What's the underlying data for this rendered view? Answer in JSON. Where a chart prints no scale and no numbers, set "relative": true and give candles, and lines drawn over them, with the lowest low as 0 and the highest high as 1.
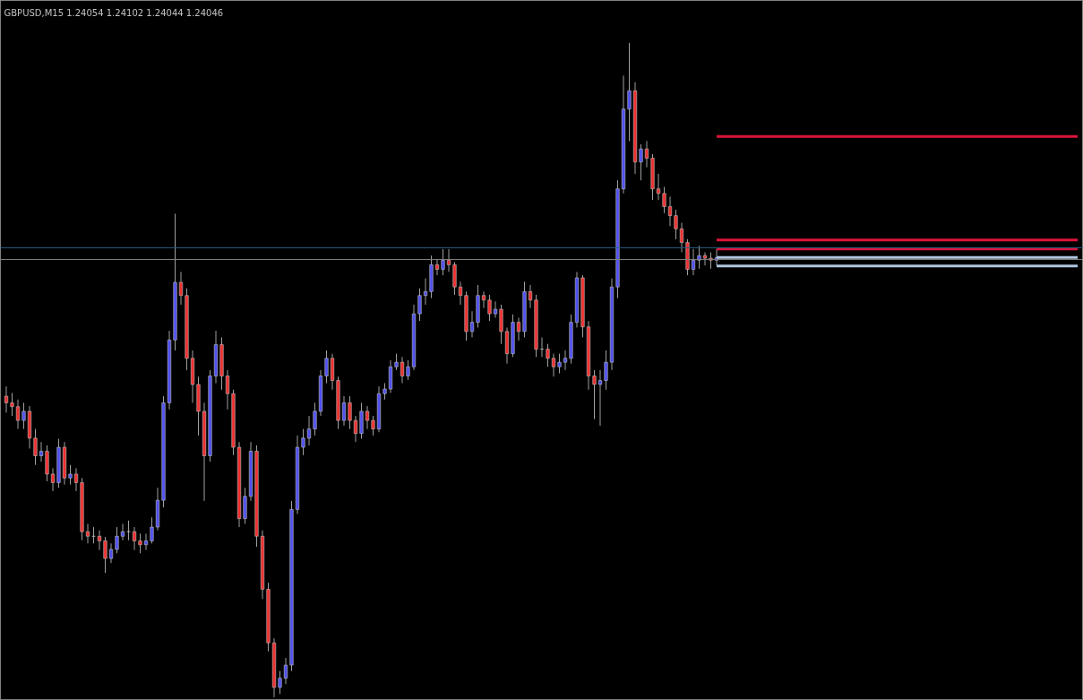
{
  "chart_data": {
    "type": "candlestick",
    "title": "GBPUSD,M15  1.24054 1.24102 1.24044 1.24046",
    "relative": true,
    "categories": [
      null,
      null,
      null,
      null,
      null,
      null,
      null,
      null,
      null,
      null,
      null,
      null,
      null,
      null,
      null,
      null,
      null,
      null,
      null,
      null,
      null,
      null,
      null,
      null,
      null,
      null,
      null,
      null,
      null,
      null,
      null,
      null,
      null,
      null,
      null,
      null,
      null,
      null,
      null,
      null,
      null,
      null,
      null,
      null,
      null,
      null,
      null,
      null,
      null,
      null,
      null,
      null,
      null,
      null,
      null,
      null,
      null,
      null,
      null,
      null,
      null,
      null,
      null,
      null,
      null,
      null,
      null,
      null,
      null,
      null,
      null,
      null,
      null,
      null,
      null,
      null,
      null,
      null,
      null,
      null,
      null,
      null,
      null,
      null,
      null,
      null,
      null,
      null,
      null,
      null,
      null,
      null,
      null,
      null,
      null,
      null,
      null,
      null,
      null,
      null,
      null,
      null,
      null,
      null,
      null,
      null,
      null,
      null,
      null,
      null,
      null,
      null,
      null,
      null,
      null,
      null,
      null,
      null,
      null,
      null,
      null,
      null,
      null,
      null,
      null,
      null,
      null,
      null,
      null,
      null,
      null,
      null,
      null,
      null,
      null,
      null,
      null,
      null,
      null,
      null,
      null,
      null,
      null,
      null,
      null,
      null,
      null,
      null,
      null,
      null,
      null,
      null,
      null,
      null,
      null,
      null,
      null,
      null,
      null,
      null,
      null,
      null,
      null,
      null,
      null,
      null,
      null,
      null,
      null,
      null,
      null,
      null,
      null,
      null,
      null,
      null,
      null,
      null,
      null,
      null,
      null,
      null,
      null,
      null,
      null
    ],
    "ohlc": [
      [
        0.46,
        0.475,
        0.435,
        0.45
      ],
      [
        0.45,
        0.465,
        0.43,
        0.444
      ],
      [
        0.444,
        0.455,
        0.41,
        0.423
      ],
      [
        0.423,
        0.45,
        0.41,
        0.437
      ],
      [
        0.437,
        0.445,
        0.38,
        0.396
      ],
      [
        0.396,
        0.41,
        0.355,
        0.369
      ],
      [
        0.369,
        0.39,
        0.36,
        0.376
      ],
      [
        0.376,
        0.385,
        0.33,
        0.341
      ],
      [
        0.341,
        0.35,
        0.315,
        0.328
      ],
      [
        0.328,
        0.395,
        0.32,
        0.382
      ],
      [
        0.382,
        0.39,
        0.325,
        0.335
      ],
      [
        0.335,
        0.355,
        0.325,
        0.341
      ],
      [
        0.341,
        0.35,
        0.315,
        0.328
      ],
      [
        0.328,
        0.335,
        0.24,
        0.253
      ],
      [
        0.253,
        0.265,
        0.235,
        0.246
      ],
      [
        0.246,
        0.26,
        0.235,
        0.246
      ],
      [
        0.246,
        0.255,
        0.225,
        0.239
      ],
      [
        0.239,
        0.245,
        0.19,
        0.212
      ],
      [
        0.212,
        0.235,
        0.205,
        0.226
      ],
      [
        0.226,
        0.26,
        0.22,
        0.246
      ],
      [
        0.246,
        0.265,
        0.24,
        0.253
      ],
      [
        0.253,
        0.27,
        0.24,
        0.253
      ],
      [
        0.253,
        0.26,
        0.225,
        0.239
      ],
      [
        0.239,
        0.25,
        0.22,
        0.233
      ],
      [
        0.233,
        0.25,
        0.225,
        0.239
      ],
      [
        0.239,
        0.275,
        0.235,
        0.26
      ],
      [
        0.26,
        0.32,
        0.255,
        0.301
      ],
      [
        0.301,
        0.46,
        0.29,
        0.45
      ],
      [
        0.45,
        0.56,
        0.44,
        0.546
      ],
      [
        0.546,
        0.739,
        0.53,
        0.634
      ],
      [
        0.634,
        0.65,
        0.6,
        0.614
      ],
      [
        0.614,
        0.625,
        0.5,
        0.518
      ],
      [
        0.518,
        0.53,
        0.45,
        0.478
      ],
      [
        0.478,
        0.49,
        0.4,
        0.437
      ],
      [
        0.437,
        0.45,
        0.3,
        0.369
      ],
      [
        0.369,
        0.5,
        0.36,
        0.491
      ],
      [
        0.491,
        0.56,
        0.48,
        0.539
      ],
      [
        0.539,
        0.55,
        0.47,
        0.491
      ],
      [
        0.491,
        0.5,
        0.44,
        0.464
      ],
      [
        0.464,
        0.47,
        0.37,
        0.382
      ],
      [
        0.382,
        0.39,
        0.26,
        0.273
      ],
      [
        0.273,
        0.32,
        0.265,
        0.307
      ],
      [
        0.307,
        0.39,
        0.3,
        0.376
      ],
      [
        0.376,
        0.385,
        0.23,
        0.246
      ],
      [
        0.246,
        0.255,
        0.15,
        0.165
      ],
      [
        0.165,
        0.175,
        0.07,
        0.083
      ],
      [
        0.083,
        0.09,
        0.0,
        0.015
      ],
      [
        0.015,
        0.04,
        0.005,
        0.029
      ],
      [
        0.029,
        0.06,
        0.02,
        0.049
      ],
      [
        0.049,
        0.3,
        0.04,
        0.287
      ],
      [
        0.287,
        0.4,
        0.28,
        0.382
      ],
      [
        0.382,
        0.41,
        0.37,
        0.396
      ],
      [
        0.396,
        0.43,
        0.385,
        0.41
      ],
      [
        0.41,
        0.45,
        0.4,
        0.437
      ],
      [
        0.437,
        0.5,
        0.43,
        0.491
      ],
      [
        0.491,
        0.53,
        0.48,
        0.518
      ],
      [
        0.518,
        0.525,
        0.47,
        0.484
      ],
      [
        0.484,
        0.49,
        0.41,
        0.423
      ],
      [
        0.423,
        0.46,
        0.415,
        0.45
      ],
      [
        0.45,
        0.46,
        0.41,
        0.423
      ],
      [
        0.423,
        0.43,
        0.39,
        0.403
      ],
      [
        0.403,
        0.45,
        0.395,
        0.437
      ],
      [
        0.437,
        0.445,
        0.41,
        0.423
      ],
      [
        0.423,
        0.43,
        0.4,
        0.41
      ],
      [
        0.41,
        0.475,
        0.405,
        0.464
      ],
      [
        0.464,
        0.48,
        0.455,
        0.471
      ],
      [
        0.471,
        0.515,
        0.465,
        0.505
      ],
      [
        0.505,
        0.525,
        0.5,
        0.512
      ],
      [
        0.512,
        0.52,
        0.48,
        0.491
      ],
      [
        0.491,
        0.515,
        0.485,
        0.505
      ],
      [
        0.505,
        0.6,
        0.5,
        0.586
      ],
      [
        0.586,
        0.625,
        0.575,
        0.614
      ],
      [
        0.614,
        0.64,
        0.6,
        0.62
      ],
      [
        0.62,
        0.675,
        0.61,
        0.661
      ],
      [
        0.661,
        0.67,
        0.645,
        0.654
      ],
      [
        0.654,
        0.685,
        0.645,
        0.668
      ],
      [
        0.668,
        0.685,
        0.65,
        0.661
      ],
      [
        0.661,
        0.665,
        0.615,
        0.627
      ],
      [
        0.627,
        0.635,
        0.6,
        0.614
      ],
      [
        0.614,
        0.62,
        0.545,
        0.559
      ],
      [
        0.559,
        0.59,
        0.55,
        0.573
      ],
      [
        0.573,
        0.63,
        0.565,
        0.614
      ],
      [
        0.614,
        0.62,
        0.595,
        0.607
      ],
      [
        0.607,
        0.615,
        0.575,
        0.586
      ],
      [
        0.586,
        0.605,
        0.58,
        0.593
      ],
      [
        0.593,
        0.6,
        0.54,
        0.559
      ],
      [
        0.559,
        0.565,
        0.51,
        0.525
      ],
      [
        0.525,
        0.585,
        0.52,
        0.573
      ],
      [
        0.573,
        0.58,
        0.545,
        0.559
      ],
      [
        0.559,
        0.635,
        0.55,
        0.62
      ],
      [
        0.62,
        0.63,
        0.595,
        0.607
      ],
      [
        0.607,
        0.615,
        0.52,
        0.532
      ],
      [
        0.532,
        0.55,
        0.52,
        0.532
      ],
      [
        0.532,
        0.54,
        0.505,
        0.518
      ],
      [
        0.518,
        0.525,
        0.49,
        0.505
      ],
      [
        0.505,
        0.525,
        0.495,
        0.512
      ],
      [
        0.512,
        0.53,
        0.5,
        0.518
      ],
      [
        0.518,
        0.585,
        0.51,
        0.573
      ],
      [
        0.573,
        0.65,
        0.565,
        0.641
      ],
      [
        0.641,
        0.645,
        0.55,
        0.566
      ],
      [
        0.566,
        0.575,
        0.47,
        0.491
      ],
      [
        0.491,
        0.5,
        0.425,
        0.478
      ],
      [
        0.478,
        0.5,
        0.415,
        0.484
      ],
      [
        0.484,
        0.53,
        0.47,
        0.512
      ],
      [
        0.512,
        0.64,
        0.5,
        0.627
      ],
      [
        0.627,
        0.79,
        0.61,
        0.777
      ],
      [
        0.777,
        0.95,
        0.77,
        0.899
      ],
      [
        0.899,
        1.0,
        0.85,
        0.927
      ],
      [
        0.927,
        0.94,
        0.8,
        0.818
      ],
      [
        0.818,
        0.845,
        0.79,
        0.838
      ],
      [
        0.838,
        0.85,
        0.81,
        0.824
      ],
      [
        0.824,
        0.83,
        0.76,
        0.777
      ],
      [
        0.777,
        0.8,
        0.76,
        0.77
      ],
      [
        0.77,
        0.78,
        0.74,
        0.75
      ],
      [
        0.75,
        0.765,
        0.72,
        0.736
      ],
      [
        0.736,
        0.745,
        0.7,
        0.716
      ],
      [
        0.716,
        0.725,
        0.68,
        0.695
      ],
      [
        0.695,
        0.7,
        0.645,
        0.654
      ],
      [
        0.654,
        0.685,
        0.645,
        0.668
      ],
      [
        0.668,
        0.69,
        0.655,
        0.675
      ],
      [
        0.675,
        0.68,
        0.66,
        0.671
      ],
      [
        0.671,
        0.68,
        0.655,
        0.668
      ],
      [
        0.668,
        0.685,
        0.66,
        0.672
      ],
      null,
      null,
      null,
      null,
      null,
      null,
      null,
      null,
      null,
      null,
      null,
      null,
      null,
      null,
      null,
      null,
      null,
      null,
      null,
      null,
      null,
      null,
      null,
      null,
      null,
      null,
      null,
      null,
      null,
      null,
      null,
      null,
      null,
      null,
      null,
      null,
      null,
      null,
      null,
      null,
      null,
      null,
      null,
      null,
      null,
      null,
      null,
      null,
      null,
      null,
      null,
      null,
      null,
      null,
      null,
      null,
      null,
      null,
      null,
      null,
      null,
      null
    ],
    "series": [
      {
        "type": "line",
        "color": "#dc143c",
        "values": [
          null,
          null,
          null,
          null,
          null,
          null,
          null,
          null,
          null,
          null,
          null,
          null,
          null,
          null,
          null,
          null,
          null,
          null,
          null,
          null,
          null,
          null,
          null,
          null,
          null,
          null,
          null,
          null,
          null,
          null,
          null,
          null,
          null,
          null,
          null,
          null,
          null,
          null,
          null,
          null,
          null,
          null,
          null,
          null,
          null,
          null,
          null,
          null,
          null,
          null,
          null,
          null,
          null,
          null,
          null,
          null,
          null,
          null,
          null,
          null,
          null,
          null,
          null,
          null,
          null,
          null,
          null,
          null,
          null,
          null,
          null,
          null,
          null,
          null,
          null,
          null,
          null,
          null,
          null,
          null,
          null,
          null,
          null,
          null,
          null,
          null,
          null,
          null,
          null,
          null,
          null,
          null,
          null,
          null,
          null,
          null,
          null,
          null,
          null,
          null,
          null,
          null,
          null,
          null,
          null,
          null,
          null,
          null,
          null,
          null,
          null,
          null,
          null,
          null,
          null,
          null,
          null,
          null,
          null,
          null,
          null,
          null,
          0.857,
          0.857,
          0.857,
          0.857,
          0.857,
          0.857,
          0.857,
          0.857,
          0.857,
          0.857,
          0.857,
          0.857,
          0.857,
          0.857,
          0.857,
          0.857,
          0.857,
          0.857,
          0.857,
          0.857,
          0.857,
          0.857,
          0.857,
          0.857,
          0.857,
          0.857,
          0.857,
          0.857,
          0.857,
          0.857,
          0.857,
          0.857,
          0.857,
          0.857,
          0.857,
          0.857,
          0.857,
          0.857,
          0.857,
          0.857,
          0.857,
          0.857,
          0.857,
          0.857,
          0.857,
          0.857,
          0.857,
          0.857,
          0.857,
          0.857,
          0.857,
          0.857,
          0.857,
          0.857,
          0.857,
          0.857,
          0.857,
          0.857,
          0.857,
          0.857,
          0.857,
          0.857,
          0.857
        ]
      },
      {
        "type": "line",
        "color": "#dc143c",
        "values": [
          null,
          null,
          null,
          null,
          null,
          null,
          null,
          null,
          null,
          null,
          null,
          null,
          null,
          null,
          null,
          null,
          null,
          null,
          null,
          null,
          null,
          null,
          null,
          null,
          null,
          null,
          null,
          null,
          null,
          null,
          null,
          null,
          null,
          null,
          null,
          null,
          null,
          null,
          null,
          null,
          null,
          null,
          null,
          null,
          null,
          null,
          null,
          null,
          null,
          null,
          null,
          null,
          null,
          null,
          null,
          null,
          null,
          null,
          null,
          null,
          null,
          null,
          null,
          null,
          null,
          null,
          null,
          null,
          null,
          null,
          null,
          null,
          null,
          null,
          null,
          null,
          null,
          null,
          null,
          null,
          null,
          null,
          null,
          null,
          null,
          null,
          null,
          null,
          null,
          null,
          null,
          null,
          null,
          null,
          null,
          null,
          null,
          null,
          null,
          null,
          null,
          null,
          null,
          null,
          null,
          null,
          null,
          null,
          null,
          null,
          null,
          null,
          null,
          null,
          null,
          null,
          null,
          null,
          null,
          null,
          null,
          null,
          0.699,
          0.699,
          0.699,
          0.699,
          0.699,
          0.699,
          0.699,
          0.699,
          0.699,
          0.699,
          0.699,
          0.699,
          0.699,
          0.699,
          0.699,
          0.699,
          0.699,
          0.699,
          0.699,
          0.699,
          0.699,
          0.699,
          0.699,
          0.699,
          0.699,
          0.699,
          0.699,
          0.699,
          0.699,
          0.699,
          0.699,
          0.699,
          0.699,
          0.699,
          0.699,
          0.699,
          0.699,
          0.699,
          0.699,
          0.699,
          0.699,
          0.699,
          0.699,
          0.699,
          0.699,
          0.699,
          0.699,
          0.699,
          0.699,
          0.699,
          0.699,
          0.699,
          0.699,
          0.699,
          0.699,
          0.699,
          0.699,
          0.699,
          0.699,
          0.699,
          0.699,
          0.699,
          0.699
        ]
      },
      {
        "type": "line",
        "color": "#dc143c",
        "values": [
          null,
          null,
          null,
          null,
          null,
          null,
          null,
          null,
          null,
          null,
          null,
          null,
          null,
          null,
          null,
          null,
          null,
          null,
          null,
          null,
          null,
          null,
          null,
          null,
          null,
          null,
          null,
          null,
          null,
          null,
          null,
          null,
          null,
          null,
          null,
          null,
          null,
          null,
          null,
          null,
          null,
          null,
          null,
          null,
          null,
          null,
          null,
          null,
          null,
          null,
          null,
          null,
          null,
          null,
          null,
          null,
          null,
          null,
          null,
          null,
          null,
          null,
          null,
          null,
          null,
          null,
          null,
          null,
          null,
          null,
          null,
          null,
          null,
          null,
          null,
          null,
          null,
          null,
          null,
          null,
          null,
          null,
          null,
          null,
          null,
          null,
          null,
          null,
          null,
          null,
          null,
          null,
          null,
          null,
          null,
          null,
          null,
          null,
          null,
          null,
          null,
          null,
          null,
          null,
          null,
          null,
          null,
          null,
          null,
          null,
          null,
          null,
          null,
          null,
          null,
          null,
          null,
          null,
          null,
          null,
          null,
          null,
          0.685,
          0.685,
          0.685,
          0.685,
          0.685,
          0.685,
          0.685,
          0.685,
          0.685,
          0.685,
          0.685,
          0.685,
          0.685,
          0.685,
          0.685,
          0.685,
          0.685,
          0.685,
          0.685,
          0.685,
          0.685,
          0.685,
          0.685,
          0.685,
          0.685,
          0.685,
          0.685,
          0.685,
          0.685,
          0.685,
          0.685,
          0.685,
          0.685,
          0.685,
          0.685,
          0.685,
          0.685,
          0.685,
          0.685,
          0.685,
          0.685,
          0.685,
          0.685,
          0.685,
          0.685,
          0.685,
          0.685,
          0.685,
          0.685,
          0.685,
          0.685,
          0.685,
          0.685,
          0.685,
          0.685,
          0.685,
          0.685,
          0.685,
          0.685,
          0.685,
          0.685,
          0.685,
          0.685
        ]
      },
      {
        "type": "line",
        "color": "#b0c4de",
        "values": [
          null,
          null,
          null,
          null,
          null,
          null,
          null,
          null,
          null,
          null,
          null,
          null,
          null,
          null,
          null,
          null,
          null,
          null,
          null,
          null,
          null,
          null,
          null,
          null,
          null,
          null,
          null,
          null,
          null,
          null,
          null,
          null,
          null,
          null,
          null,
          null,
          null,
          null,
          null,
          null,
          null,
          null,
          null,
          null,
          null,
          null,
          null,
          null,
          null,
          null,
          null,
          null,
          null,
          null,
          null,
          null,
          null,
          null,
          null,
          null,
          null,
          null,
          null,
          null,
          null,
          null,
          null,
          null,
          null,
          null,
          null,
          null,
          null,
          null,
          null,
          null,
          null,
          null,
          null,
          null,
          null,
          null,
          null,
          null,
          null,
          null,
          null,
          null,
          null,
          null,
          null,
          null,
          null,
          null,
          null,
          null,
          null,
          null,
          null,
          null,
          null,
          null,
          null,
          null,
          null,
          null,
          null,
          null,
          null,
          null,
          null,
          null,
          null,
          null,
          null,
          null,
          null,
          null,
          null,
          null,
          null,
          null,
          0.672,
          0.672,
          0.672,
          0.672,
          0.672,
          0.672,
          0.672,
          0.672,
          0.672,
          0.672,
          0.672,
          0.672,
          0.672,
          0.672,
          0.672,
          0.672,
          0.672,
          0.672,
          0.672,
          0.672,
          0.672,
          0.672,
          0.672,
          0.672,
          0.672,
          0.672,
          0.672,
          0.672,
          0.672,
          0.672,
          0.672,
          0.672,
          0.672,
          0.672,
          0.672,
          0.672,
          0.672,
          0.672,
          0.672,
          0.672,
          0.672,
          0.672,
          0.672,
          0.672,
          0.672,
          0.672,
          0.672,
          0.672,
          0.672,
          0.672,
          0.672,
          0.672,
          0.672,
          0.672,
          0.672,
          0.672,
          0.672,
          0.672,
          0.672,
          0.672,
          0.672,
          0.672,
          0.672
        ]
      },
      {
        "type": "line",
        "color": "#b0c4de",
        "values": [
          null,
          null,
          null,
          null,
          null,
          null,
          null,
          null,
          null,
          null,
          null,
          null,
          null,
          null,
          null,
          null,
          null,
          null,
          null,
          null,
          null,
          null,
          null,
          null,
          null,
          null,
          null,
          null,
          null,
          null,
          null,
          null,
          null,
          null,
          null,
          null,
          null,
          null,
          null,
          null,
          null,
          null,
          null,
          null,
          null,
          null,
          null,
          null,
          null,
          null,
          null,
          null,
          null,
          null,
          null,
          null,
          null,
          null,
          null,
          null,
          null,
          null,
          null,
          null,
          null,
          null,
          null,
          null,
          null,
          null,
          null,
          null,
          null,
          null,
          null,
          null,
          null,
          null,
          null,
          null,
          null,
          null,
          null,
          null,
          null,
          null,
          null,
          null,
          null,
          null,
          null,
          null,
          null,
          null,
          null,
          null,
          null,
          null,
          null,
          null,
          null,
          null,
          null,
          null,
          null,
          null,
          null,
          null,
          null,
          null,
          null,
          null,
          null,
          null,
          null,
          null,
          null,
          null,
          null,
          null,
          null,
          null,
          0.659,
          0.659,
          0.659,
          0.659,
          0.659,
          0.659,
          0.659,
          0.659,
          0.659,
          0.659,
          0.659,
          0.659,
          0.659,
          0.659,
          0.659,
          0.659,
          0.659,
          0.659,
          0.659,
          0.659,
          0.659,
          0.659,
          0.659,
          0.659,
          0.659,
          0.659,
          0.659,
          0.659,
          0.659,
          0.659,
          0.659,
          0.659,
          0.659,
          0.659,
          0.659,
          0.659,
          0.659,
          0.659,
          0.659,
          0.659,
          0.659,
          0.659,
          0.659,
          0.659,
          0.659,
          0.659,
          0.659,
          0.659,
          0.659,
          0.659,
          0.659,
          0.659,
          0.659,
          0.659,
          0.659,
          0.659,
          0.659,
          0.659,
          0.659,
          0.659,
          0.659,
          0.659,
          0.659
        ]
      }
    ],
    "ref_lines": [
      {
        "axis": "y",
        "value": 0.687,
        "color": "#2a5d86"
      },
      {
        "axis": "y",
        "value": 0.669,
        "color": "#808080"
      }
    ],
    "grid": false
  }
}
